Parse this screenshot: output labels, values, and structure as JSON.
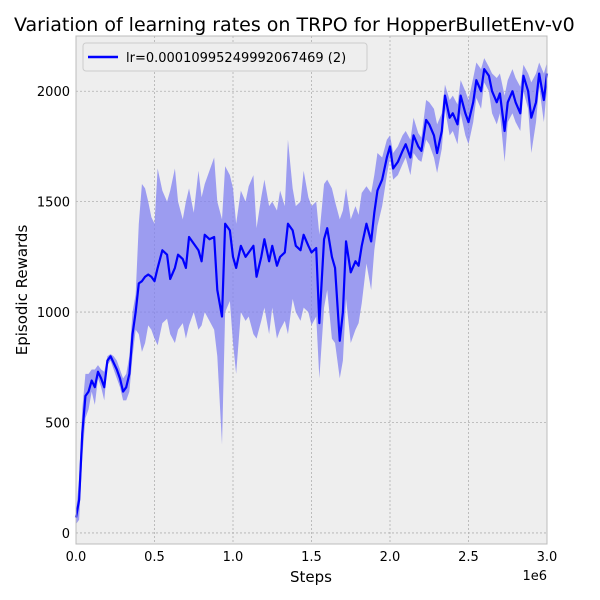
{
  "chart_data": {
    "type": "line",
    "title": "Variation of learning rates on TRPO for HopperBulletEnv-v0",
    "xlabel": "Steps",
    "ylabel": "Episodic Rewards",
    "x_multiplier_label": "1e6",
    "xlim": [
      0,
      3.0
    ],
    "ylim": [
      -50,
      2250
    ],
    "x_ticks": [
      0,
      0.5,
      1.0,
      1.5,
      2.0,
      2.5,
      3.0
    ],
    "x_tick_labels": [
      "0.0",
      "0.5",
      "1.0",
      "1.5",
      "2.0",
      "2.5",
      "3.0"
    ],
    "y_ticks": [
      0,
      500,
      1000,
      1500,
      2000
    ],
    "y_tick_labels": [
      "0",
      "500",
      "1000",
      "1500",
      "2000"
    ],
    "grid": true,
    "legend_position": "top-left",
    "colors": {
      "line": "#0000ff",
      "band": "#8080f0",
      "plot_bg": "#eeeeee",
      "grid": "#b0b0b0"
    },
    "series": [
      {
        "name": "lr=0.00010995249992067469 (2)",
        "x": [
          0.0,
          0.02,
          0.04,
          0.06,
          0.08,
          0.1,
          0.12,
          0.14,
          0.16,
          0.18,
          0.2,
          0.22,
          0.24,
          0.26,
          0.28,
          0.3,
          0.32,
          0.34,
          0.36,
          0.38,
          0.4,
          0.42,
          0.44,
          0.46,
          0.48,
          0.5,
          0.52,
          0.55,
          0.58,
          0.6,
          0.63,
          0.65,
          0.68,
          0.7,
          0.72,
          0.75,
          0.78,
          0.8,
          0.82,
          0.85,
          0.88,
          0.9,
          0.93,
          0.95,
          0.98,
          1.0,
          1.02,
          1.05,
          1.08,
          1.1,
          1.13,
          1.15,
          1.18,
          1.2,
          1.23,
          1.25,
          1.28,
          1.3,
          1.33,
          1.35,
          1.38,
          1.4,
          1.43,
          1.45,
          1.48,
          1.5,
          1.53,
          1.55,
          1.58,
          1.6,
          1.63,
          1.65,
          1.68,
          1.7,
          1.72,
          1.75,
          1.78,
          1.8,
          1.82,
          1.85,
          1.88,
          1.9,
          1.92,
          1.95,
          1.98,
          2.0,
          2.02,
          2.05,
          2.08,
          2.1,
          2.13,
          2.15,
          2.18,
          2.2,
          2.23,
          2.25,
          2.28,
          2.3,
          2.33,
          2.35,
          2.38,
          2.4,
          2.43,
          2.45,
          2.48,
          2.5,
          2.53,
          2.55,
          2.58,
          2.6,
          2.63,
          2.65,
          2.68,
          2.7,
          2.73,
          2.75,
          2.78,
          2.8,
          2.83,
          2.85,
          2.88,
          2.9,
          2.93,
          2.95,
          2.98,
          3.0
        ],
        "y": [
          70,
          150,
          450,
          620,
          640,
          690,
          660,
          730,
          700,
          660,
          780,
          800,
          770,
          740,
          700,
          640,
          660,
          720,
          900,
          1000,
          1130,
          1140,
          1160,
          1170,
          1160,
          1140,
          1200,
          1280,
          1260,
          1150,
          1200,
          1260,
          1240,
          1200,
          1340,
          1310,
          1280,
          1230,
          1350,
          1330,
          1340,
          1100,
          980,
          1400,
          1370,
          1250,
          1200,
          1300,
          1250,
          1270,
          1300,
          1160,
          1250,
          1330,
          1230,
          1300,
          1210,
          1250,
          1270,
          1400,
          1370,
          1300,
          1280,
          1350,
          1300,
          1270,
          1290,
          950,
          1330,
          1380,
          1250,
          1200,
          870,
          1000,
          1320,
          1180,
          1230,
          1210,
          1300,
          1400,
          1320,
          1450,
          1550,
          1600,
          1700,
          1750,
          1650,
          1680,
          1730,
          1760,
          1700,
          1800,
          1750,
          1730,
          1870,
          1850,
          1800,
          1720,
          1820,
          1980,
          1880,
          1900,
          1850,
          1980,
          1900,
          1860,
          1950,
          2050,
          2000,
          2100,
          2070,
          2000,
          1950,
          1990,
          1820,
          1950,
          2000,
          1950,
          1900,
          2070,
          2000,
          1880,
          1950,
          2080,
          1960,
          2080
        ],
        "y_upper": [
          90,
          250,
          560,
          720,
          720,
          740,
          740,
          760,
          740,
          730,
          800,
          810,
          800,
          780,
          740,
          700,
          720,
          800,
          1000,
          1080,
          1400,
          1580,
          1560,
          1500,
          1430,
          1400,
          1650,
          1550,
          1500,
          1550,
          1650,
          1500,
          1420,
          1500,
          1560,
          1450,
          1640,
          1520,
          1580,
          1640,
          1700,
          1500,
          1420,
          1660,
          1620,
          1560,
          1400,
          1550,
          1500,
          1570,
          1620,
          1380,
          1520,
          1600,
          1480,
          1500,
          1460,
          1550,
          1480,
          1780,
          1560,
          1480,
          1500,
          1640,
          1520,
          1480,
          1500,
          1350,
          1580,
          1600,
          1560,
          1500,
          1420,
          1460,
          1560,
          1420,
          1480,
          1440,
          1540,
          1570,
          1540,
          1620,
          1720,
          1700,
          1780,
          1800,
          1720,
          1750,
          1800,
          1820,
          1780,
          1880,
          1810,
          1790,
          1960,
          1950,
          1920,
          1850,
          1900,
          2030,
          1960,
          1980,
          1940,
          2050,
          2000,
          1960,
          2060,
          2130,
          2100,
          2150,
          2110,
          2080,
          2060,
          2080,
          1980,
          2050,
          2100,
          2060,
          2020,
          2120,
          2080,
          2040,
          2080,
          2130,
          2080,
          2130
        ],
        "y_lower": [
          40,
          60,
          340,
          520,
          560,
          640,
          580,
          700,
          660,
          600,
          760,
          780,
          740,
          700,
          660,
          600,
          600,
          640,
          800,
          920,
          900,
          820,
          860,
          940,
          920,
          880,
          850,
          950,
          970,
          900,
          860,
          920,
          950,
          880,
          940,
          1000,
          920,
          940,
          1000,
          960,
          920,
          800,
          400,
          1000,
          1050,
          860,
          720,
          1000,
          960,
          980,
          900,
          880,
          960,
          1020,
          900,
          1020,
          880,
          920,
          960,
          900,
          1060,
          1000,
          960,
          1020,
          1000,
          940,
          980,
          700,
          1020,
          1100,
          880,
          860,
          700,
          780,
          1060,
          860,
          920,
          950,
          1040,
          1220,
          1100,
          1280,
          1390,
          1480,
          1620,
          1700,
          1600,
          1620,
          1670,
          1700,
          1620,
          1720,
          1690,
          1680,
          1780,
          1760,
          1700,
          1630,
          1740,
          1920,
          1800,
          1820,
          1760,
          1900,
          1800,
          1760,
          1860,
          1970,
          1920,
          2040,
          2000,
          1900,
          1850,
          1900,
          1680,
          1860,
          1900,
          1860,
          1820,
          2000,
          1920,
          1720,
          1860,
          2020,
          1860,
          2020
        ]
      }
    ]
  }
}
